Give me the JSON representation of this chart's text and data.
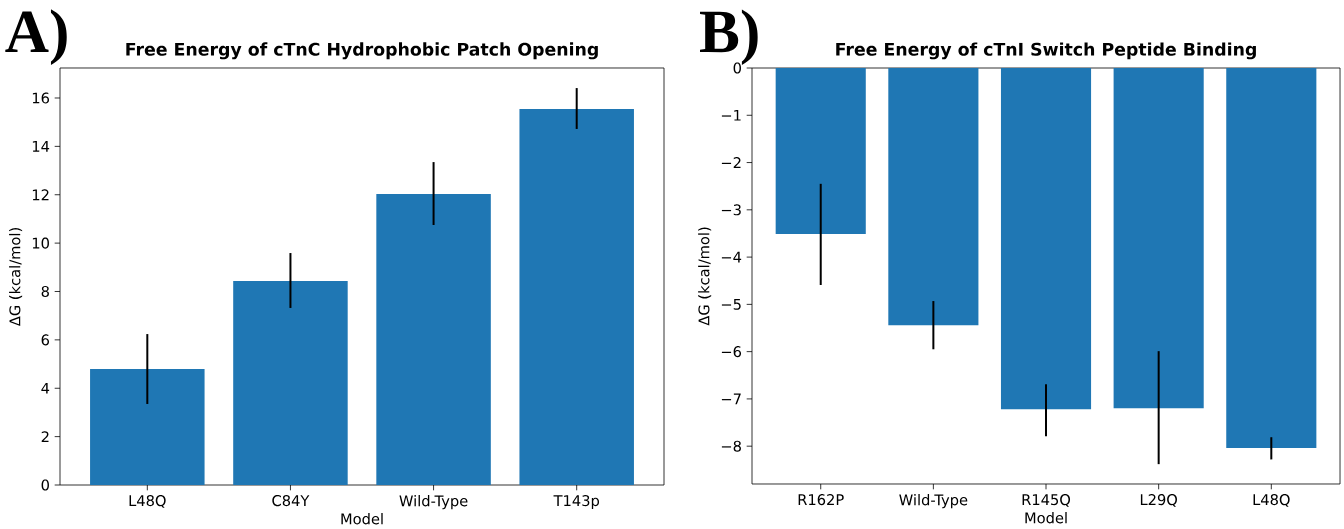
{
  "chart_data": [
    {
      "type": "bar",
      "title": "Free Energy of cTnC Hydrophobic Patch Opening",
      "xlabel": "Model",
      "ylabel": "ΔG (kcal/mol)",
      "annotations": [
        "A)"
      ],
      "color": "#1f77b4",
      "categories": [
        "L48Q",
        "C84Y",
        "Wild-Type",
        "T143p"
      ],
      "values": [
        4.8,
        8.43,
        12.03,
        15.54
      ],
      "errors": [
        [
          3.35,
          6.24
        ],
        [
          7.32,
          9.59
        ],
        [
          10.75,
          13.35
        ],
        [
          14.72,
          16.41
        ]
      ],
      "ylim": [
        0,
        17.24
      ],
      "yticks": [
        0,
        2,
        4,
        6,
        8,
        10,
        12,
        14,
        16
      ]
    },
    {
      "type": "bar",
      "title": "Free Energy of cTnI Switch Peptide Binding",
      "xlabel": "Model",
      "ylabel": "ΔG (kcal/mol)",
      "annotations": [
        "B)"
      ],
      "color": "#1f77b4",
      "categories": [
        "R162P",
        "Wild-Type",
        "R145Q",
        "L29Q",
        "L48Q"
      ],
      "values": [
        -3.51,
        -5.44,
        -7.22,
        -7.2,
        -8.04
      ],
      "errors": [
        [
          -4.59,
          -2.45
        ],
        [
          -5.95,
          -4.93
        ],
        [
          -7.79,
          -6.69
        ],
        [
          -8.38,
          -5.99
        ],
        [
          -8.28,
          -7.81
        ]
      ],
      "ylim": [
        -8.8,
        0
      ],
      "yticks": [
        0,
        {
          "value": -1,
          "label": "−1"
        },
        {
          "value": -2,
          "label": "−2"
        },
        {
          "value": -3,
          "label": "−3"
        },
        {
          "value": -4,
          "label": "−4"
        },
        {
          "value": -5,
          "label": "−5"
        },
        {
          "value": -6,
          "label": "−6"
        },
        {
          "value": -7,
          "label": "−7"
        },
        {
          "value": -8,
          "label": "−8"
        }
      ]
    }
  ]
}
